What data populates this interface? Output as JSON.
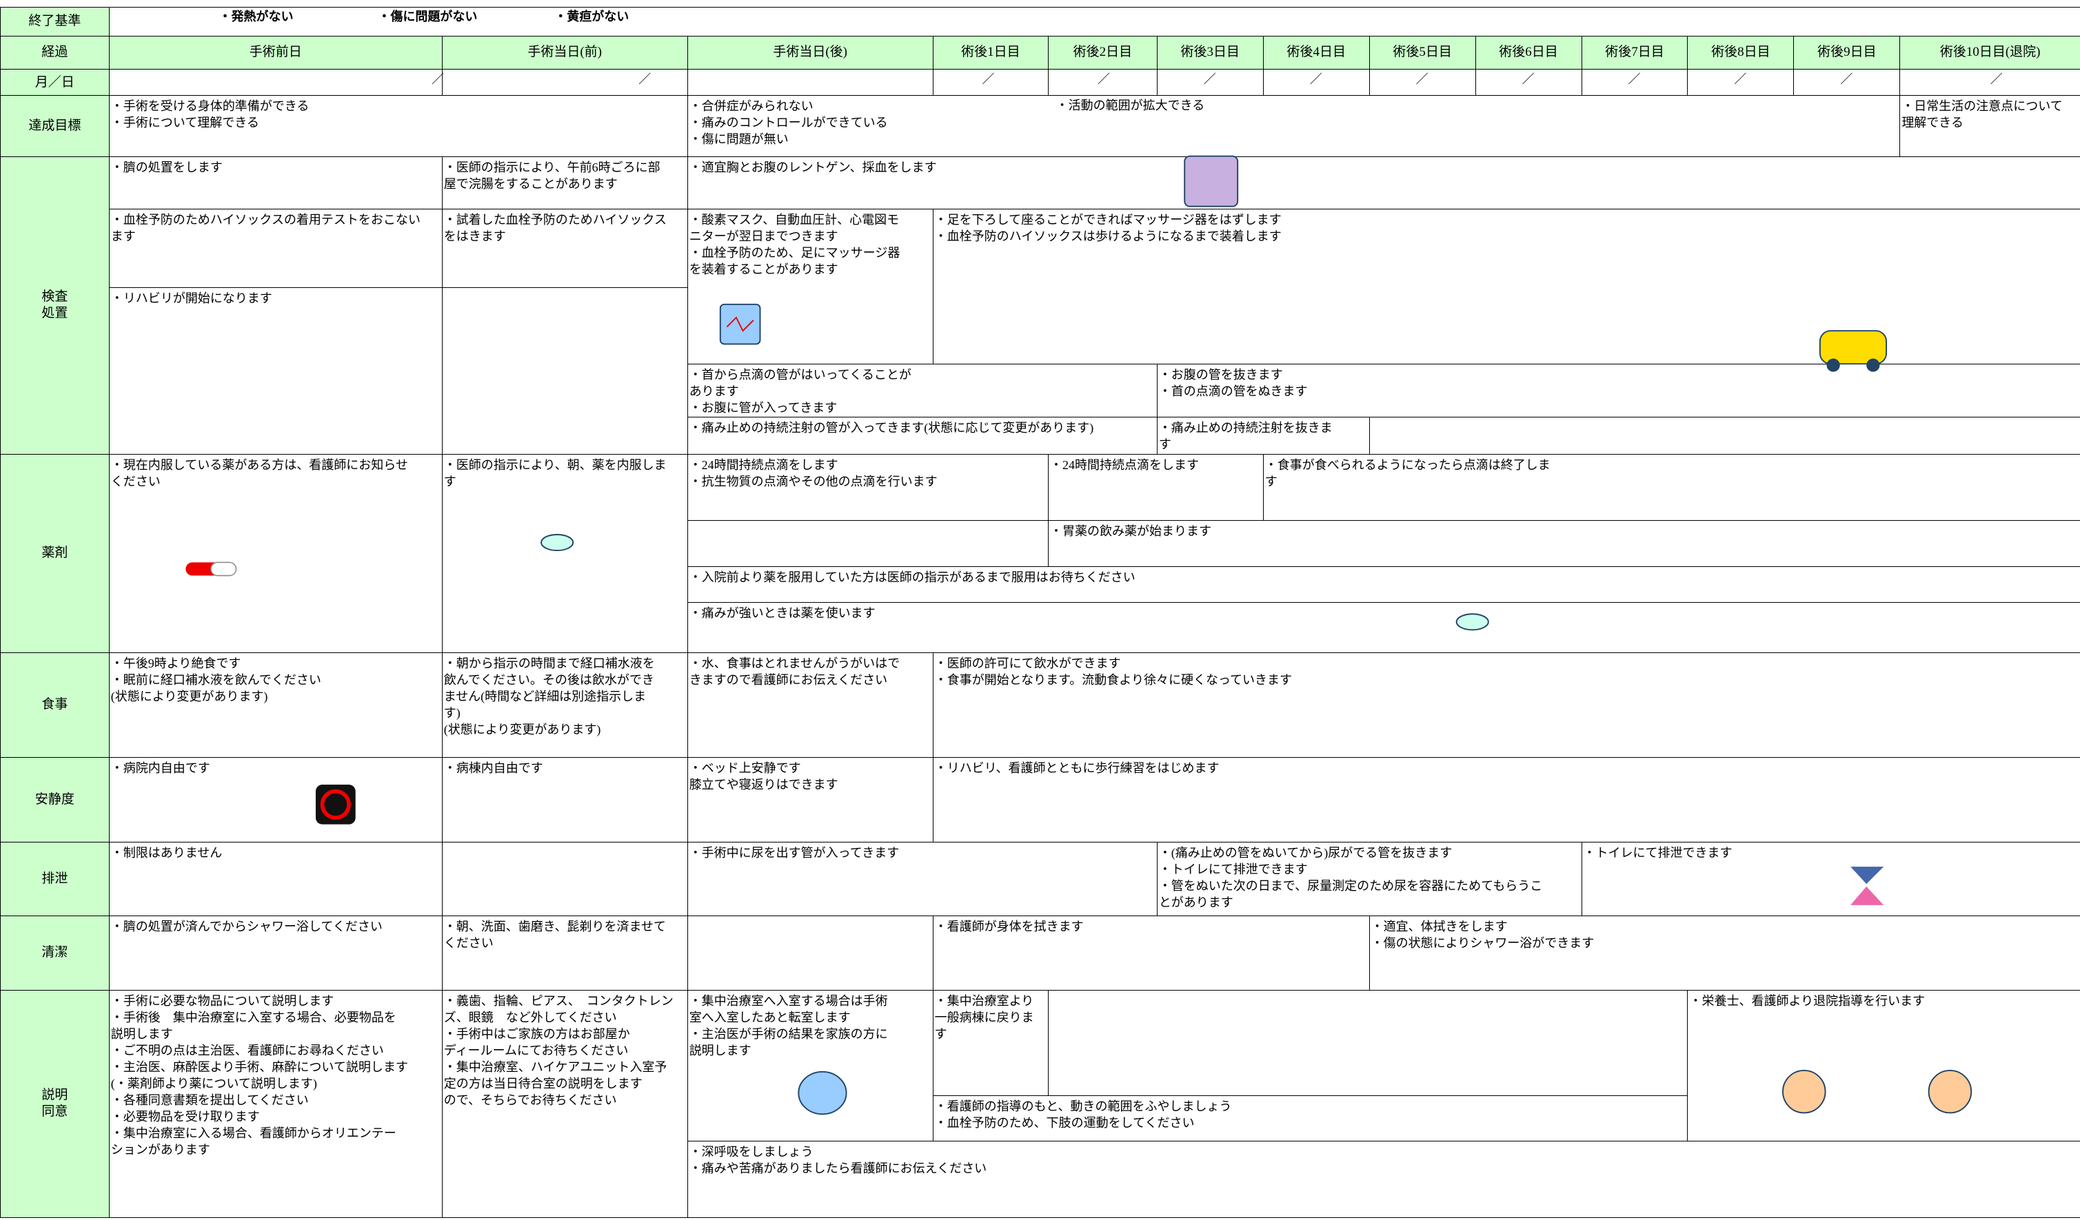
{
  "criteria": {
    "label": "終了基準",
    "items": [
      "・発熱がない",
      "・傷に問題がない",
      "・黄疸がない"
    ]
  },
  "header": {
    "label": "経過",
    "columns": [
      "手術前日",
      "手術当日(前)",
      "手術当日(後)",
      "術後1日目",
      "術後2日目",
      "術後3日目",
      "術後4日目",
      "術後5日目",
      "術後6日目",
      "術後7日目",
      "術後8日目",
      "術後9日目",
      "術後10日目(退院)"
    ]
  },
  "dates": {
    "label": "月／日",
    "marks": [
      "／",
      "／",
      "／",
      "／",
      "／",
      "／",
      "／",
      "／",
      "／",
      "／",
      "／",
      "／"
    ]
  },
  "rows": [
    {
      "label": [
        "達成目標"
      ],
      "cells": [
        {
          "lines": [
            "・手術を受ける身体的準備ができる",
            "・手術について理解できる"
          ]
        },
        {
          "lines": [
            "・合併症がみられない",
            "・痛みのコントロールができている",
            "・傷に問題が無い"
          ]
        },
        {
          "lines": [
            "・活動の範囲が拡大できる"
          ]
        },
        {
          "lines": [
            "・日常生活の注意点について",
            "理解できる"
          ]
        }
      ]
    },
    {
      "label": [
        "検査",
        "処置"
      ],
      "cells": [
        {
          "lines": [
            "・臍の処置をします"
          ]
        },
        {
          "lines": [
            "・医師の指示により、午前6時ごろに部",
            "屋で浣腸をすることがあります"
          ]
        },
        {
          "lines": [
            "・適宜胸とお腹のレントゲン、採血をします"
          ]
        },
        {
          "lines": [
            "・血栓予防のためハイソックスの着用テストをおこない",
            "ます"
          ]
        },
        {
          "lines": [
            "・試着した血栓予防のためハイソックス",
            "をはきます"
          ]
        },
        {
          "lines": [
            "・酸素マスク、自動血圧計、心電図モ",
            "ニターが翌日までつきます",
            "・血栓予防のため、足にマッサージ器",
            "を装着することがあります"
          ]
        },
        {
          "lines": [
            "・足を下ろして座ることができればマッサージ器をはずします",
            "・血栓予防のハイソックスは歩けるようになるまで装着します"
          ]
        },
        {
          "lines": [
            "・リハビリが開始になります"
          ]
        },
        {
          "lines": []
        },
        {
          "lines": [
            "・首から点滴の管がはいってくることが",
            "あります",
            "・お腹に管が入ってきます"
          ]
        },
        {
          "lines": [
            "・お腹の管を抜きます",
            "・首の点滴の管をぬきます"
          ]
        },
        {
          "lines": [
            "・痛み止めの持続注射の管が入ってきます(状態に応じて変更があります)"
          ]
        },
        {
          "lines": [
            "・痛み止めの持続注射を抜きま",
            "す"
          ]
        },
        {
          "lines": []
        }
      ]
    },
    {
      "label": [
        "薬剤"
      ],
      "cells": [
        {
          "lines": [
            "・現在内服している薬がある方は、看護師にお知らせ",
            "ください"
          ]
        },
        {
          "lines": [
            "・医師の指示により、朝、薬を内服しま",
            "す"
          ]
        },
        {
          "lines": [
            "・24時間持続点滴をします",
            "・抗生物質の点滴やその他の点滴を行います"
          ]
        },
        {
          "lines": [
            "・24時間持続点滴をします"
          ]
        },
        {
          "lines": [
            "・食事が食べられるようになったら点滴は終了しま",
            "す"
          ]
        },
        {
          "lines": []
        },
        {
          "lines": [
            "・胃薬の飲み薬が始まります"
          ]
        },
        {
          "lines": [
            "・入院前より薬を服用していた方は医師の指示があるまで服用はお待ちください"
          ]
        },
        {
          "lines": [
            "・痛みが強いときは薬を使います"
          ]
        }
      ]
    },
    {
      "label": [
        "食事"
      ],
      "cells": [
        {
          "lines": [
            "・午後9時より絶食です",
            "・眠前に経口補水液を飲んでください",
            "(状態により変更があります)"
          ]
        },
        {
          "lines": [
            "・朝から指示の時間まで経口補水液を",
            "飲んでください。その後は飲水ができ",
            "ません(時間など詳細は別途指示しま",
            "す)",
            "(状態により変更があります)"
          ]
        },
        {
          "lines": [
            "・水、食事はとれませんがうがいはで",
            "きますので看護師にお伝えください"
          ]
        },
        {
          "lines": [
            "・医師の許可にて飲水ができます",
            "・食事が開始となります。流動食より徐々に硬くなっていきます"
          ]
        }
      ]
    },
    {
      "label": [
        "安静度"
      ],
      "cells": [
        {
          "lines": [
            "・病院内自由です"
          ]
        },
        {
          "lines": [
            "・病棟内自由です"
          ]
        },
        {
          "lines": [
            "・ベッド上安静です",
            "膝立てや寝返りはできます"
          ]
        },
        {
          "lines": [
            "・リハビリ、看護師とともに歩行練習をはじめます"
          ]
        }
      ]
    },
    {
      "label": [
        "排泄"
      ],
      "cells": [
        {
          "lines": [
            "・制限はありません"
          ]
        },
        {
          "lines": []
        },
        {
          "lines": [
            "・手術中に尿を出す管が入ってきます"
          ]
        },
        {
          "lines": [
            "・(痛み止めの管をぬいてから)尿がでる管を抜きます",
            "・トイレにて排泄できます",
            "・管をぬいた次の日まで、尿量測定のため尿を容器にためてもらうこ",
            "とがあります"
          ]
        },
        {
          "lines": [
            "・トイレにて排泄できます"
          ]
        }
      ]
    },
    {
      "label": [
        "清潔"
      ],
      "cells": [
        {
          "lines": [
            "・臍の処置が済んでからシャワー浴してください"
          ]
        },
        {
          "lines": [
            "・朝、洗面、歯磨き、髭剃りを済ませて",
            "ください"
          ]
        },
        {
          "lines": []
        },
        {
          "lines": [
            "・看護師が身体を拭きます"
          ]
        },
        {
          "lines": [
            "・適宜、体拭きをします",
            "・傷の状態によりシャワー浴ができます"
          ]
        }
      ]
    },
    {
      "label": [
        "説明",
        "同意"
      ],
      "cells": [
        {
          "lines": [
            "・手術に必要な物品について説明します",
            "・手術後　集中治療室に入室する場合、必要物品を",
            "説明します",
            "・ご不明の点は主治医、看護師にお尋ねください",
            "・主治医、麻酔医より手術、麻酔について説明します",
            "(・薬剤師より薬について説明します)",
            "・各種同意書類を提出してください",
            "・必要物品を受け取ります",
            "・集中治療室に入る場合、看護師からオリエンテー",
            "ションがあります"
          ]
        },
        {
          "lines": [
            "・義歯、指輪、ピアス、　コンタクトレン",
            "ズ、眼鏡　など外してください",
            "・手術中はご家族の方はお部屋か",
            "ディールームにてお待ちください",
            "・集中治療室、ハイケアユニット入室予",
            "定の方は当日待合室の説明をします",
            "ので、そちらでお待ちください"
          ]
        },
        {
          "lines": [
            "・集中治療室へ入室する場合は手術",
            "室へ入室したあと転室します",
            "・主治医が手術の結果を家族の方に",
            "説明します"
          ]
        },
        {
          "lines": [
            "・集中治療室より",
            "一般病棟に戻りま",
            "す"
          ]
        },
        {
          "lines": []
        },
        {
          "lines": [
            "・看護師の指導のもと、動きの範囲をふやしましょう",
            "・血栓予防のため、下肢の運動をしてください"
          ]
        },
        {
          "lines": [
            "・栄養士、看護師より退院指導を行います"
          ]
        },
        {
          "lines": [
            "・深呼吸をしましょう",
            "・痛みや苦痛がありましたら看護師にお伝えください"
          ]
        }
      ]
    }
  ]
}
